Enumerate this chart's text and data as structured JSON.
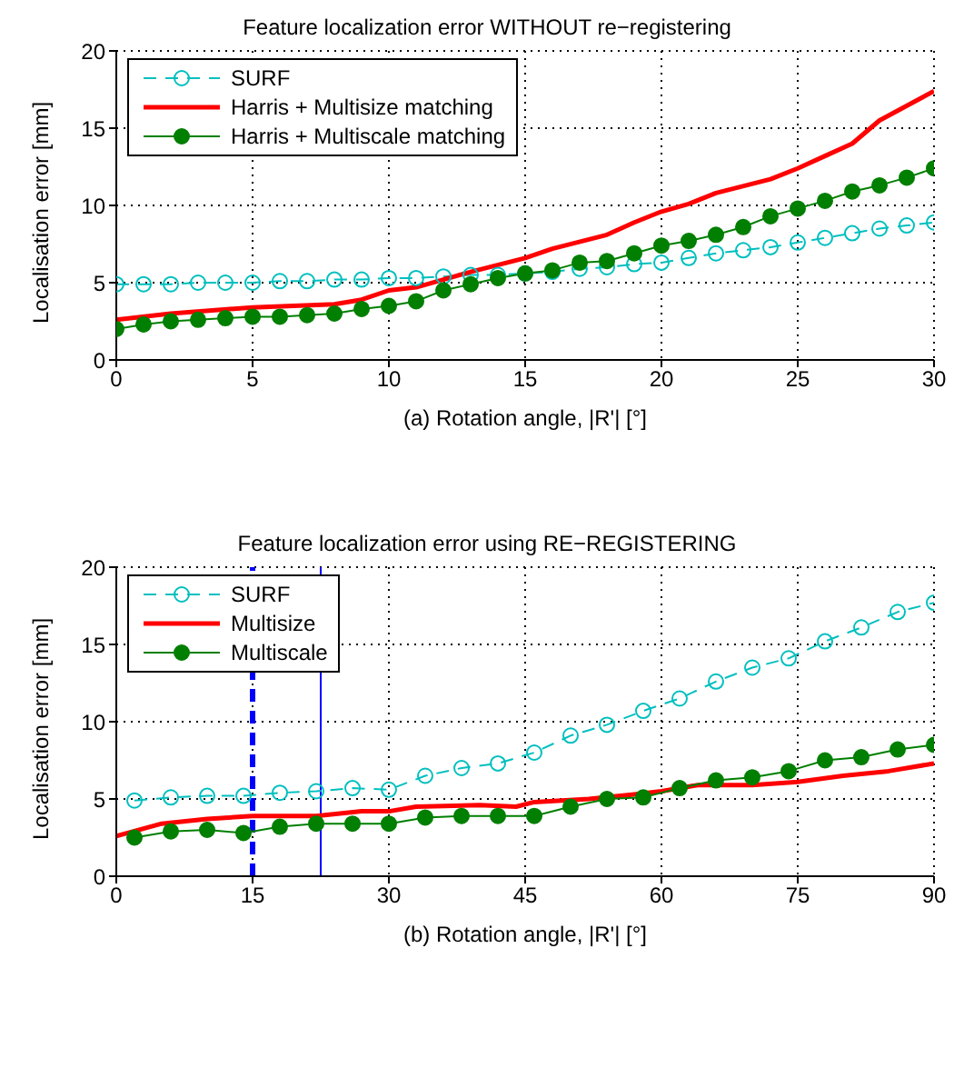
{
  "chart_data": [
    {
      "type": "line",
      "title": "Feature localization error WITHOUT re−registering",
      "xlabel": "(a) Rotation angle, |R'| [°]",
      "ylabel": "Localisation error [mm]",
      "xlim": [
        0,
        30
      ],
      "xticks": [
        0,
        5,
        10,
        15,
        20,
        25,
        30
      ],
      "ylim": [
        0,
        20
      ],
      "yticks": [
        0,
        5,
        10,
        15,
        20
      ],
      "grid": true,
      "legend": "top left",
      "series": [
        {
          "name": "SURF",
          "color": "#00bfbf",
          "marker": "circle",
          "line_style": "dashed",
          "x": [
            0,
            1,
            2,
            3,
            4,
            5,
            6,
            7,
            8,
            9,
            10,
            11,
            12,
            13,
            14,
            15,
            16,
            17,
            18,
            19,
            20,
            21,
            22,
            23,
            24,
            25,
            26,
            27,
            28,
            29,
            30
          ],
          "values": [
            4.9,
            4.9,
            4.9,
            5.0,
            5.0,
            5.0,
            5.1,
            5.1,
            5.2,
            5.2,
            5.3,
            5.3,
            5.4,
            5.5,
            5.5,
            5.6,
            5.7,
            5.9,
            6.0,
            6.2,
            6.3,
            6.6,
            6.9,
            7.1,
            7.3,
            7.6,
            7.9,
            8.2,
            8.5,
            8.7,
            8.9
          ]
        },
        {
          "name": "Harris + Multisize matching",
          "color": "#ff0000",
          "marker": "none",
          "line_style": "solid",
          "x": [
            0,
            2,
            5,
            8,
            9,
            10,
            11,
            12,
            13,
            15,
            16,
            18,
            19,
            20,
            21,
            22,
            24,
            25,
            26,
            27,
            28,
            30
          ],
          "values": [
            2.6,
            3.0,
            3.4,
            3.6,
            3.9,
            4.5,
            4.7,
            5.2,
            5.7,
            6.6,
            7.2,
            8.1,
            8.9,
            9.6,
            10.1,
            10.8,
            11.7,
            12.4,
            13.2,
            14.0,
            15.5,
            17.4
          ]
        },
        {
          "name": "Harris + Multiscale matching",
          "color": "#007f00",
          "marker": "circle",
          "line_style": "solid",
          "x": [
            0,
            1,
            2,
            3,
            4,
            5,
            6,
            7,
            8,
            9,
            10,
            11,
            12,
            13,
            14,
            15,
            16,
            17,
            18,
            19,
            20,
            21,
            22,
            23,
            24,
            25,
            26,
            27,
            28,
            29,
            30
          ],
          "values": [
            2.0,
            2.3,
            2.5,
            2.6,
            2.7,
            2.8,
            2.8,
            2.9,
            3.0,
            3.3,
            3.5,
            3.8,
            4.5,
            4.9,
            5.3,
            5.6,
            5.8,
            6.3,
            6.4,
            6.9,
            7.4,
            7.7,
            8.1,
            8.6,
            9.3,
            9.8,
            10.3,
            10.9,
            11.3,
            11.8,
            12.4
          ]
        }
      ]
    },
    {
      "type": "line",
      "title": "Feature localization error using RE−REGISTERING",
      "xlabel": "(b) Rotation angle, |R'| [°]",
      "ylabel": "Localisation error [mm]",
      "xlim": [
        0,
        90
      ],
      "xticks": [
        0,
        15,
        30,
        45,
        60,
        75,
        90
      ],
      "ylim": [
        0,
        20
      ],
      "yticks": [
        0,
        5,
        10,
        15,
        20
      ],
      "grid": true,
      "legend": "top left",
      "ref_lines": [
        {
          "axis": "x",
          "value": 15,
          "color": "#0000ff",
          "line_style": "dashed"
        },
        {
          "axis": "x",
          "value": 22.5,
          "color": "#0000ff",
          "line_style": "solid"
        }
      ],
      "series": [
        {
          "name": "SURF",
          "color": "#00bfbf",
          "marker": "circle",
          "line_style": "dashed",
          "x": [
            2,
            6,
            10,
            14,
            18,
            22,
            26,
            30,
            34,
            38,
            42,
            46,
            50,
            54,
            58,
            62,
            66,
            70,
            74,
            78,
            82,
            86,
            90
          ],
          "values": [
            4.9,
            5.1,
            5.2,
            5.2,
            5.4,
            5.5,
            5.7,
            5.6,
            6.5,
            7.0,
            7.3,
            8.0,
            9.1,
            9.8,
            10.7,
            11.5,
            12.6,
            13.5,
            14.1,
            15.2,
            16.1,
            17.1,
            17.7
          ]
        },
        {
          "name": "Multisize",
          "color": "#ff0000",
          "marker": "none",
          "line_style": "solid",
          "x": [
            0,
            5,
            10,
            15,
            22,
            27,
            30,
            33,
            40,
            44,
            46,
            52,
            57,
            60,
            64,
            70,
            75,
            80,
            85,
            90
          ],
          "values": [
            2.6,
            3.4,
            3.7,
            3.9,
            3.9,
            4.2,
            4.2,
            4.5,
            4.6,
            4.5,
            4.8,
            5.0,
            5.3,
            5.5,
            5.9,
            5.9,
            6.1,
            6.5,
            6.8,
            7.3
          ]
        },
        {
          "name": "Multiscale",
          "color": "#007f00",
          "marker": "circle",
          "line_style": "solid",
          "x": [
            2,
            6,
            10,
            14,
            18,
            22,
            26,
            30,
            34,
            38,
            42,
            46,
            50,
            54,
            58,
            62,
            66,
            70,
            74,
            78,
            82,
            86,
            90
          ],
          "values": [
            2.5,
            2.9,
            3.0,
            2.8,
            3.2,
            3.4,
            3.4,
            3.4,
            3.8,
            3.9,
            3.9,
            3.9,
            4.5,
            5.0,
            5.1,
            5.7,
            6.2,
            6.4,
            6.8,
            7.5,
            7.7,
            8.2,
            8.5
          ]
        }
      ]
    }
  ]
}
